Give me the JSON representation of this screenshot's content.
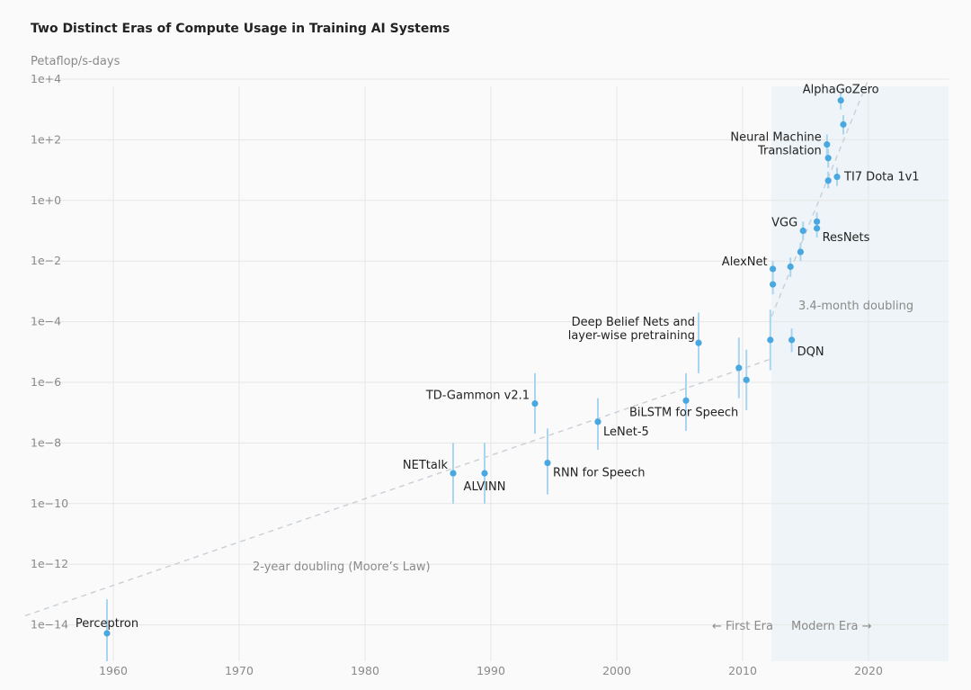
{
  "chart_data": {
    "type": "scatter",
    "title": "Two Distinct Eras of Compute Usage in Training AI Systems",
    "ylabel": "Petaflop/s-days",
    "y_scale": "log",
    "xlim": [
      1953,
      2025
    ],
    "ylim": [
      1e-15,
      10000
    ],
    "x_ticks": [
      1960,
      1970,
      1980,
      1990,
      2000,
      2010,
      2020
    ],
    "y_ticks": [
      {
        "value": 10000,
        "label": "1e+4"
      },
      {
        "value": 100,
        "label": "1e+2"
      },
      {
        "value": 1,
        "label": "1e+0"
      },
      {
        "value": 0.01,
        "label": "1e−2"
      },
      {
        "value": 0.0001,
        "label": "1e−4"
      },
      {
        "value": 1e-06,
        "label": "1e−6"
      },
      {
        "value": 1e-08,
        "label": "1e−8"
      },
      {
        "value": 1e-10,
        "label": "1e−10"
      },
      {
        "value": 1e-12,
        "label": "1e−12"
      },
      {
        "value": 1e-14,
        "label": "1e−14"
      }
    ],
    "grid": true,
    "points": [
      {
        "label": "Perceptron",
        "x": 1959.5,
        "y": 1e-15,
        "ylow": 2e-16,
        "yhigh": 7e-14
      },
      {
        "label": "NETtalk",
        "x": 1987.0,
        "y": 1e-09,
        "ylow": 1e-10,
        "yhigh": 1e-08
      },
      {
        "label": "ALVINN",
        "x": 1989.5,
        "y": 1e-09,
        "ylow": 1e-10,
        "yhigh": 1e-08
      },
      {
        "label": "RNN for Speech",
        "x": 1994.5,
        "y": 2.2e-09,
        "ylow": 2e-10,
        "yhigh": 3e-08
      },
      {
        "label": "TD-Gammon v2.1",
        "x": 1993.5,
        "y": 2e-07,
        "ylow": 2e-08,
        "yhigh": 2e-06
      },
      {
        "label": "LeNet-5",
        "x": 1998.5,
        "y": 5e-08,
        "ylow": 6e-09,
        "yhigh": 3e-07
      },
      {
        "label": "BiLSTM for Speech",
        "x": 2005.5,
        "y": 2.5e-07,
        "ylow": 2.5e-08,
        "yhigh": 2e-06
      },
      {
        "label": "Deep Belief Nets and layer-wise pretraining",
        "x": 2006.5,
        "y": 2e-05,
        "ylow": 2e-06,
        "yhigh": 0.0002
      },
      {
        "label": "",
        "x": 2009.7,
        "y": 3e-06,
        "ylow": 3e-07,
        "yhigh": 3e-05
      },
      {
        "label": "",
        "x": 2010.3,
        "y": 1.2e-06,
        "ylow": 1.2e-07,
        "yhigh": 1.2e-05
      },
      {
        "label": "",
        "x": 2012.2,
        "y": 2.5e-05,
        "ylow": 2.5e-06,
        "yhigh": 0.00025
      },
      {
        "label": "DQN",
        "x": 2013.9,
        "y": 2.5e-05,
        "ylow": 1e-05,
        "yhigh": 6e-05
      },
      {
        "label": "AlexNet",
        "x": 2012.4,
        "y": 0.0055,
        "ylow": 0.0025,
        "yhigh": 0.01
      },
      {
        "label": "",
        "x": 2012.4,
        "y": 0.0017,
        "ylow": 0.0008,
        "yhigh": 0.004
      },
      {
        "label": "",
        "x": 2013.8,
        "y": 0.0065,
        "ylow": 0.003,
        "yhigh": 0.013
      },
      {
        "label": "",
        "x": 2014.6,
        "y": 0.02,
        "ylow": 0.01,
        "yhigh": 0.04
      },
      {
        "label": "VGG",
        "x": 2014.8,
        "y": 0.1,
        "ylow": 0.05,
        "yhigh": 0.2
      },
      {
        "label": "",
        "x": 2015.9,
        "y": 0.2,
        "ylow": 0.1,
        "yhigh": 0.4
      },
      {
        "label": "ResNets",
        "x": 2015.9,
        "y": 0.12,
        "ylow": 0.06,
        "yhigh": 0.25
      },
      {
        "label": "Neural Machine Translation",
        "x": 2016.7,
        "y": 70,
        "ylow": 30,
        "yhigh": 150
      },
      {
        "label": "",
        "x": 2016.8,
        "y": 25,
        "ylow": 12,
        "yhigh": 50
      },
      {
        "label": "",
        "x": 2016.8,
        "y": 4.5,
        "ylow": 2.5,
        "yhigh": 9
      },
      {
        "label": "TI7 Dota 1v1",
        "x": 2017.5,
        "y": 6,
        "ylow": 3,
        "yhigh": 12
      },
      {
        "label": "AlphaGoZero",
        "x": 2017.8,
        "y": 2000,
        "ylow": 1000,
        "yhigh": 3500
      },
      {
        "label": "",
        "x": 2018.0,
        "y": 320,
        "ylow": 150,
        "yhigh": 650
      }
    ],
    "trend_lines": [
      {
        "name": "2-year doubling (Moore's Law)",
        "x": [
          1953,
          2012.3
        ],
        "y": [
          2e-14,
          6e-06
        ]
      },
      {
        "name": "3.4-month doubling",
        "x": [
          2012.3,
          2020
        ],
        "y": [
          0.00015,
          10000
        ]
      }
    ],
    "annotations": [
      {
        "text": "2-year doubling (Moore’s Law)"
      },
      {
        "text": "3.4-month doubling"
      },
      {
        "text": "← First Era"
      },
      {
        "text": "Modern Era →"
      }
    ],
    "modern_era_start": 2012.3,
    "colors": {
      "point": "#4aa8e0",
      "errorbar": "#a9d5f1",
      "shade": "#eef4f7",
      "grid": "#e6e6e6",
      "trend": "#c9cfd6"
    }
  }
}
